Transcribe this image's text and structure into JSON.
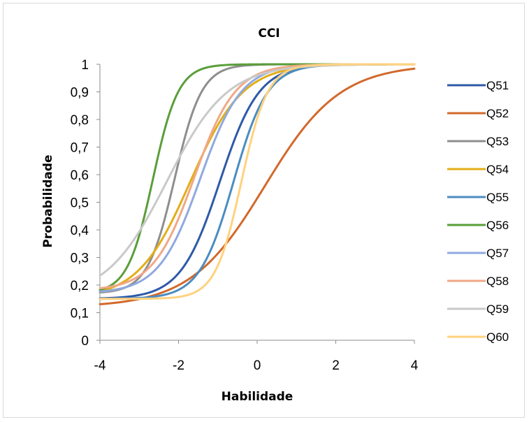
{
  "chart_data": {
    "type": "line",
    "title": "CCI",
    "xlabel": "Habilidade",
    "ylabel": "Probabilidade",
    "xlim": [
      -4,
      4
    ],
    "ylim": [
      0,
      1
    ],
    "x_ticks": [
      "-4",
      "-2",
      "0",
      "2",
      "4"
    ],
    "y_ticks": [
      "0",
      "0,1",
      "0,2",
      "0,3",
      "0,4",
      "0,5",
      "0,6",
      "0,7",
      "0,8",
      "0,9",
      "1"
    ],
    "grid": false,
    "legend_position": "right",
    "model": "3PL logistic, P = c + (1 - c) / (1 + exp(-a (x - b)))",
    "series": [
      {
        "name": "Q51",
        "color": "#2E5AA8",
        "a": 2.0,
        "b": -0.95,
        "c": 0.15
      },
      {
        "name": "Q52",
        "color": "#D2692B",
        "a": 1.05,
        "b": 0.2,
        "c": 0.12
      },
      {
        "name": "Q53",
        "color": "#8E8E8E",
        "a": 2.9,
        "b": -2.1,
        "c": 0.17
      },
      {
        "name": "Q54",
        "color": "#E2AE18",
        "a": 1.5,
        "b": -1.7,
        "c": 0.15
      },
      {
        "name": "Q55",
        "color": "#4A8CC2",
        "a": 2.3,
        "b": -0.6,
        "c": 0.15
      },
      {
        "name": "Q56",
        "color": "#5A9E3A",
        "a": 3.1,
        "b": -2.65,
        "c": 0.17
      },
      {
        "name": "Q57",
        "color": "#8FA9DF",
        "a": 1.9,
        "b": -1.45,
        "c": 0.17
      },
      {
        "name": "Q58",
        "color": "#F0A886",
        "a": 1.9,
        "b": -1.6,
        "c": 0.18
      },
      {
        "name": "Q59",
        "color": "#C9C9C9",
        "a": 1.3,
        "b": -2.3,
        "c": 0.15
      },
      {
        "name": "Q60",
        "color": "#FFD27F",
        "a": 3.0,
        "b": -0.4,
        "c": 0.15
      }
    ],
    "x": [
      -4,
      -3.5,
      -3,
      -2.5,
      -2,
      -1.5,
      -1,
      -0.5,
      0,
      0.5,
      1,
      1.5,
      2,
      2.5,
      3,
      3.5,
      4
    ]
  }
}
